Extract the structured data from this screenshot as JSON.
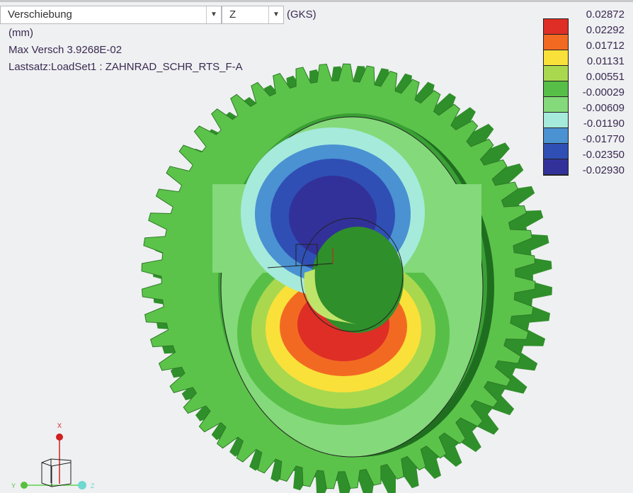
{
  "toolbar": {
    "result_type": "Verschiebung",
    "component": "Z",
    "coord_system": "(GKS)"
  },
  "info": {
    "unit": "(mm)",
    "max": "Max Versch  3.9268E-02",
    "loadset": "Lastsatz:LoadSet1 :  ZAHNRAD_SCHR_RTS_F-A"
  },
  "legend": {
    "labels": [
      "0.02872",
      "0.02292",
      "0.01712",
      "0.01131",
      "0.00551",
      "-0.00029",
      "-0.00609",
      "-0.01190",
      "-0.01770",
      "-0.02350",
      "-0.02930"
    ],
    "colors": [
      "#de2e26",
      "#f26a22",
      "#f9e13a",
      "#a9d84f",
      "#57bf47",
      "#84d97a",
      "#a6eadc",
      "#4a92d2",
      "#2f4fb5",
      "#32319a"
    ]
  },
  "triad": {
    "x": "X",
    "y": "Y",
    "z": "Z"
  }
}
